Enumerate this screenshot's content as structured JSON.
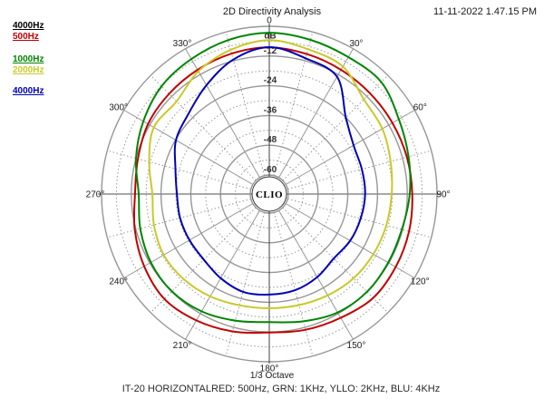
{
  "header": {
    "title": "2D Directivity Analysis",
    "timestamp": "11-11-2022 1.47.15 PM"
  },
  "legend": {
    "items": [
      {
        "label": "4000Hz",
        "color": "#000000"
      },
      {
        "label": "500Hz",
        "color": "#c00000"
      },
      {
        "label": "1000Hz",
        "color": "#008500"
      },
      {
        "label": "2000Hz",
        "color": "#c9c929"
      },
      {
        "label": "4000Hz",
        "color": "#0000b4"
      }
    ]
  },
  "center_logo": "CLIO",
  "footer": {
    "octave_label": "1/3 Octave",
    "caption": "IT-20 HORIZONTALRED: 500Hz, GRN: 1KHz, YLLO: 2KHz, BLU: 4KHz"
  },
  "chart_data": {
    "type": "polar-line",
    "units_label": "dB",
    "rlim": [
      0,
      -60
    ],
    "ring_step_db": 6,
    "labeled_ring_step_db": 12,
    "angle_step_deg": 15,
    "angle_labels": [
      "0",
      "30°",
      "60°",
      "90°",
      "120°",
      "150°",
      "180°",
      "210°",
      "240°",
      "270°",
      "300°",
      "330°"
    ],
    "radial_tick_labels": [
      "-12",
      "-24",
      "-36",
      "-48",
      "-60"
    ],
    "radial_tick_values": [
      -12,
      -24,
      -36,
      -48,
      -60
    ],
    "grid_color": "#969696",
    "axis_color": "#404040",
    "sample_angles_deg": [
      0,
      15,
      30,
      45,
      60,
      75,
      90,
      105,
      120,
      135,
      150,
      165,
      180,
      195,
      210,
      225,
      240,
      255,
      270,
      285,
      300,
      315,
      330,
      345
    ],
    "series": [
      {
        "name": "500Hz",
        "color": "#c00000",
        "values_db": [
          -8.5,
          -9.2,
          -9.8,
          -10.2,
          -10.3,
          -10.2,
          -10.0,
          -9.3,
          -8.8,
          -8.4,
          -10.0,
          -11.0,
          -11.8,
          -10.3,
          -8.8,
          -7.8,
          -9.4,
          -11.5,
          -13.5,
          -12.8,
          -11.2,
          -10.5,
          -9.8,
          -9.0
        ]
      },
      {
        "name": "1000Hz",
        "color": "#008500",
        "values_db": [
          -2.6,
          -3.3,
          -3.9,
          -3.8,
          -7.3,
          -9.5,
          -11.0,
          -12.3,
          -12.3,
          -11.9,
          -12.5,
          -14.5,
          -16.0,
          -14.8,
          -13.0,
          -12.1,
          -12.5,
          -13.8,
          -15.0,
          -12.0,
          -9.0,
          -6.2,
          -4.8,
          -3.4
        ]
      },
      {
        "name": "2000Hz",
        "color": "#c9c929",
        "values_db": [
          -5.6,
          -7.2,
          -8.3,
          -13.7,
          -15.0,
          -17.0,
          -18.3,
          -18.8,
          -19.2,
          -19.6,
          -20.5,
          -21.3,
          -21.6,
          -21.2,
          -20.0,
          -19.0,
          -18.5,
          -19.5,
          -20.5,
          -17.5,
          -13.9,
          -14.8,
          -10.5,
          -7.5
        ]
      },
      {
        "name": "4000Hz",
        "color": "#0000b4",
        "values_db": [
          -8.4,
          -11.0,
          -13.0,
          -24.0,
          -28.4,
          -29.0,
          -29.0,
          -29.5,
          -30.0,
          -30.9,
          -29.0,
          -27.5,
          -27.1,
          -26.8,
          -28.5,
          -30.3,
          -30.5,
          -30.4,
          -30.4,
          -28.5,
          -24.2,
          -21.7,
          -17.0,
          -11.5
        ]
      }
    ]
  }
}
